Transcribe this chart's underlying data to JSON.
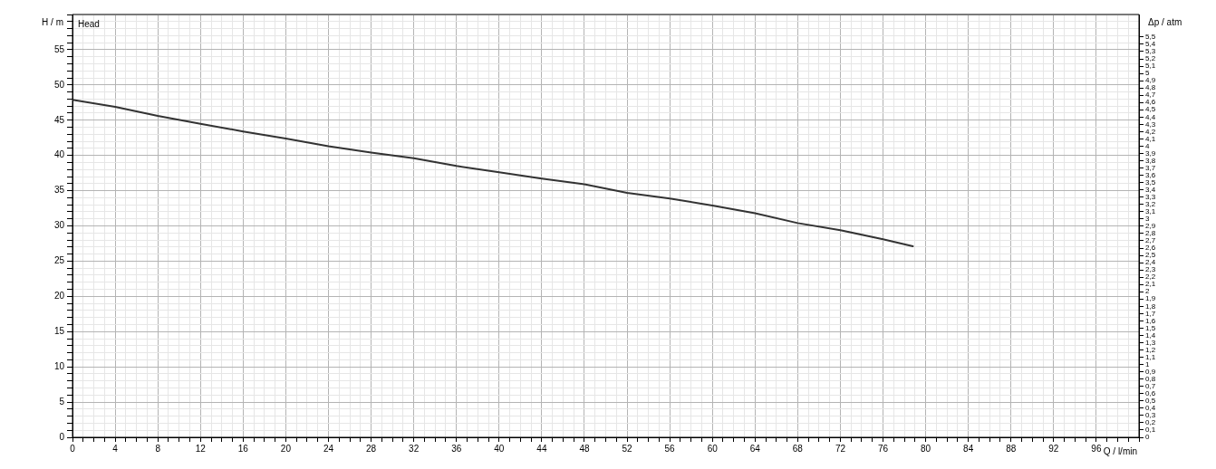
{
  "chart_data": {
    "type": "line",
    "title": "Head",
    "xlabel": "Q / l/min",
    "ylabel": "H / m",
    "y2label": "Δp / atm",
    "x": [
      0,
      4,
      8,
      12,
      16,
      20,
      24,
      28,
      32,
      36,
      40,
      44,
      48,
      52,
      56,
      60,
      64,
      68,
      72,
      76,
      78.8
    ],
    "series": [
      {
        "color": "#333333",
        "values": [
          47.9,
          46.9,
          45.6,
          44.5,
          43.4,
          42.4,
          41.3,
          40.4,
          39.6,
          38.5,
          37.6,
          36.7,
          35.9,
          34.7,
          33.9,
          32.9,
          31.8,
          30.4,
          29.4,
          28.1,
          27.1
        ]
      }
    ],
    "xlim": [
      0,
      100
    ],
    "xticks": [
      0,
      {
        "value": 1,
        "label": null
      },
      {
        "value": 2,
        "label": null
      },
      {
        "value": 3,
        "label": null
      },
      4,
      {
        "value": 5,
        "label": null
      },
      {
        "value": 6,
        "label": null
      },
      {
        "value": 7,
        "label": null
      },
      8,
      {
        "value": 9,
        "label": null
      },
      {
        "value": 10,
        "label": null
      },
      {
        "value": 11,
        "label": null
      },
      12,
      {
        "value": 13,
        "label": null
      },
      {
        "value": 14,
        "label": null
      },
      {
        "value": 15,
        "label": null
      },
      16,
      {
        "value": 17,
        "label": null
      },
      {
        "value": 18,
        "label": null
      },
      {
        "value": 19,
        "label": null
      },
      20,
      {
        "value": 21,
        "label": null
      },
      {
        "value": 22,
        "label": null
      },
      {
        "value": 23,
        "label": null
      },
      24,
      {
        "value": 25,
        "label": null
      },
      {
        "value": 26,
        "label": null
      },
      {
        "value": 27,
        "label": null
      },
      28,
      {
        "value": 29,
        "label": null
      },
      {
        "value": 30,
        "label": null
      },
      {
        "value": 31,
        "label": null
      },
      32,
      {
        "value": 33,
        "label": null
      },
      {
        "value": 34,
        "label": null
      },
      {
        "value": 35,
        "label": null
      },
      36,
      {
        "value": 37,
        "label": null
      },
      {
        "value": 38,
        "label": null
      },
      {
        "value": 39,
        "label": null
      },
      40,
      {
        "value": 41,
        "label": null
      },
      {
        "value": 42,
        "label": null
      },
      {
        "value": 43,
        "label": null
      },
      44,
      {
        "value": 45,
        "label": null
      },
      {
        "value": 46,
        "label": null
      },
      {
        "value": 47,
        "label": null
      },
      48,
      {
        "value": 49,
        "label": null
      },
      {
        "value": 50,
        "label": null
      },
      {
        "value": 51,
        "label": null
      },
      52,
      {
        "value": 53,
        "label": null
      },
      {
        "value": 54,
        "label": null
      },
      {
        "value": 55,
        "label": null
      },
      56,
      {
        "value": 57,
        "label": null
      },
      {
        "value": 58,
        "label": null
      },
      {
        "value": 59,
        "label": null
      },
      60,
      {
        "value": 61,
        "label": null
      },
      {
        "value": 62,
        "label": null
      },
      {
        "value": 63,
        "label": null
      },
      64,
      {
        "value": 65,
        "label": null
      },
      {
        "value": 66,
        "label": null
      },
      {
        "value": 67,
        "label": null
      },
      68,
      {
        "value": 69,
        "label": null
      },
      {
        "value": 70,
        "label": null
      },
      {
        "value": 71,
        "label": null
      },
      72,
      {
        "value": 73,
        "label": null
      },
      {
        "value": 74,
        "label": null
      },
      {
        "value": 75,
        "label": null
      },
      76,
      {
        "value": 77,
        "label": null
      },
      {
        "value": 78,
        "label": null
      },
      {
        "value": 79,
        "label": null
      },
      80,
      {
        "value": 81,
        "label": null
      },
      {
        "value": 82,
        "label": null
      },
      {
        "value": 83,
        "label": null
      },
      84,
      {
        "value": 85,
        "label": null
      },
      {
        "value": 86,
        "label": null
      },
      {
        "value": 87,
        "label": null
      },
      88,
      {
        "value": 89,
        "label": null
      },
      {
        "value": 90,
        "label": null
      },
      {
        "value": 91,
        "label": null
      },
      92,
      {
        "value": 93,
        "label": null
      },
      {
        "value": 94,
        "label": null
      },
      {
        "value": 95,
        "label": null
      },
      96,
      {
        "value": 97,
        "label": null
      },
      {
        "value": 98,
        "label": null
      },
      {
        "value": 99,
        "label": null
      },
      {
        "value": 100,
        "label": null
      }
    ],
    "ylim": [
      0,
      60
    ],
    "yticks": [
      0,
      {
        "value": 1,
        "label": null
      },
      {
        "value": 2,
        "label": null
      },
      {
        "value": 3,
        "label": null
      },
      {
        "value": 4,
        "label": null
      },
      5,
      {
        "value": 6,
        "label": null
      },
      {
        "value": 7,
        "label": null
      },
      {
        "value": 8,
        "label": null
      },
      {
        "value": 9,
        "label": null
      },
      10,
      {
        "value": 11,
        "label": null
      },
      {
        "value": 12,
        "label": null
      },
      {
        "value": 13,
        "label": null
      },
      {
        "value": 14,
        "label": null
      },
      15,
      {
        "value": 16,
        "label": null
      },
      {
        "value": 17,
        "label": null
      },
      {
        "value": 18,
        "label": null
      },
      {
        "value": 19,
        "label": null
      },
      20,
      {
        "value": 21,
        "label": null
      },
      {
        "value": 22,
        "label": null
      },
      {
        "value": 23,
        "label": null
      },
      {
        "value": 24,
        "label": null
      },
      25,
      {
        "value": 26,
        "label": null
      },
      {
        "value": 27,
        "label": null
      },
      {
        "value": 28,
        "label": null
      },
      {
        "value": 29,
        "label": null
      },
      30,
      {
        "value": 31,
        "label": null
      },
      {
        "value": 32,
        "label": null
      },
      {
        "value": 33,
        "label": null
      },
      {
        "value": 34,
        "label": null
      },
      35,
      {
        "value": 36,
        "label": null
      },
      {
        "value": 37,
        "label": null
      },
      {
        "value": 38,
        "label": null
      },
      {
        "value": 39,
        "label": null
      },
      40,
      {
        "value": 41,
        "label": null
      },
      {
        "value": 42,
        "label": null
      },
      {
        "value": 43,
        "label": null
      },
      {
        "value": 44,
        "label": null
      },
      45,
      {
        "value": 46,
        "label": null
      },
      {
        "value": 47,
        "label": null
      },
      {
        "value": 48,
        "label": null
      },
      {
        "value": 49,
        "label": null
      },
      50,
      {
        "value": 51,
        "label": null
      },
      {
        "value": 52,
        "label": null
      },
      {
        "value": 53,
        "label": null
      },
      {
        "value": 54,
        "label": null
      },
      55,
      {
        "value": 56,
        "label": null
      },
      {
        "value": 57,
        "label": null
      },
      {
        "value": 58,
        "label": null
      },
      {
        "value": 59,
        "label": null
      },
      {
        "value": 60,
        "label": null
      }
    ],
    "y2lim": [
      0,
      5.81
    ],
    "y2ticks": [
      0,
      {
        "value": 0.1,
        "label": "0,1"
      },
      {
        "value": 0.2,
        "label": "0,2"
      },
      {
        "value": 0.3,
        "label": "0,3"
      },
      {
        "value": 0.4,
        "label": "0,4"
      },
      {
        "value": 0.5,
        "label": "0,5"
      },
      {
        "value": 0.6,
        "label": "0,6"
      },
      {
        "value": 0.7,
        "label": "0,7"
      },
      {
        "value": 0.8,
        "label": "0,8"
      },
      {
        "value": 0.9,
        "label": "0,9"
      },
      1,
      {
        "value": 1.1,
        "label": "1,1"
      },
      {
        "value": 1.2,
        "label": "1,2"
      },
      {
        "value": 1.3,
        "label": "1,3"
      },
      {
        "value": 1.4,
        "label": "1,4"
      },
      {
        "value": 1.5,
        "label": "1,5"
      },
      {
        "value": 1.6,
        "label": "1,6"
      },
      {
        "value": 1.7,
        "label": "1,7"
      },
      {
        "value": 1.8,
        "label": "1,8"
      },
      {
        "value": 1.9,
        "label": "1,9"
      },
      2,
      {
        "value": 2.1,
        "label": "2,1"
      },
      {
        "value": 2.2,
        "label": "2,2"
      },
      {
        "value": 2.3,
        "label": "2,3"
      },
      {
        "value": 2.4,
        "label": "2,4"
      },
      {
        "value": 2.5,
        "label": "2,5"
      },
      {
        "value": 2.6,
        "label": "2,6"
      },
      {
        "value": 2.7,
        "label": "2,7"
      },
      {
        "value": 2.8,
        "label": "2,8"
      },
      {
        "value": 2.9,
        "label": "2,9"
      },
      3,
      {
        "value": 3.1,
        "label": "3,1"
      },
      {
        "value": 3.2,
        "label": "3,2"
      },
      {
        "value": 3.3,
        "label": "3,3"
      },
      {
        "value": 3.4,
        "label": "3,4"
      },
      {
        "value": 3.5,
        "label": "3,5"
      },
      {
        "value": 3.6,
        "label": "3,6"
      },
      {
        "value": 3.7,
        "label": "3,7"
      },
      {
        "value": 3.8,
        "label": "3,8"
      },
      {
        "value": 3.9,
        "label": "3,9"
      },
      4,
      {
        "value": 4.1,
        "label": "4,1"
      },
      {
        "value": 4.2,
        "label": "4,2"
      },
      {
        "value": 4.3,
        "label": "4,3"
      },
      {
        "value": 4.4,
        "label": "4,4"
      },
      {
        "value": 4.5,
        "label": "4,5"
      },
      {
        "value": 4.6,
        "label": "4,6"
      },
      {
        "value": 4.7,
        "label": "4,7"
      },
      {
        "value": 4.8,
        "label": "4,8"
      },
      {
        "value": 4.9,
        "label": "4,9"
      },
      5,
      {
        "value": 5.1,
        "label": "5,1"
      },
      {
        "value": 5.2,
        "label": "5,2"
      },
      {
        "value": 5.3,
        "label": "5,3"
      },
      {
        "value": 5.4,
        "label": "5,4"
      },
      {
        "value": 5.5,
        "label": "5,5"
      }
    ],
    "grid": true,
    "marker": "none",
    "line_style": "solid"
  }
}
